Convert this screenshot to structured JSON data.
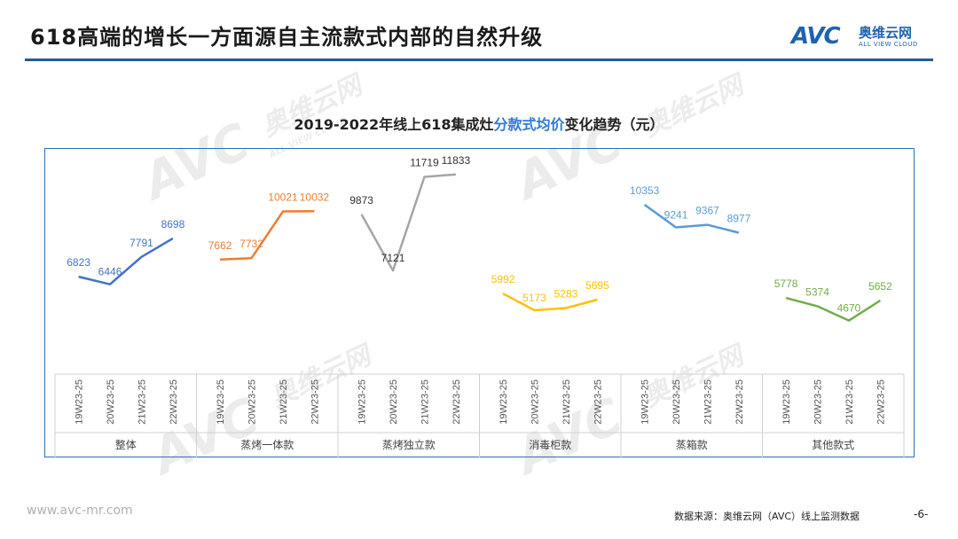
{
  "header": {
    "title": "618高端的增长一方面源自主流款式内部的自然升级"
  },
  "logo": {
    "brand": "AVC",
    "cn": "奥维云网",
    "en": "ALL VIEW CLOUD"
  },
  "watermark": {
    "brand": "AVC",
    "cn": "奥维云网",
    "en": "ALL VIEW CLOUD"
  },
  "chart_data": {
    "type": "line",
    "title_prefix": "2019-2022年线上618集成灶",
    "title_highlight": "分款式均价",
    "title_suffix": "变化趋势（元）",
    "periods": [
      "19W23-25",
      "20W23-25",
      "21W23-25",
      "22W23-25"
    ],
    "ylim": [
      3000,
      13000
    ],
    "groups": [
      {
        "name": "整体",
        "color": "#4472c4",
        "values": [
          6823,
          6446,
          7791,
          8698
        ]
      },
      {
        "name": "蒸烤一体款",
        "color": "#ed7d31",
        "values": [
          7662,
          7732,
          10021,
          10032
        ]
      },
      {
        "name": "蒸烤独立款",
        "color": "#a5a5a5",
        "values": [
          9873,
          7121,
          11719,
          11833
        ]
      },
      {
        "name": "消毒柜款",
        "color": "#ffc000",
        "values": [
          5992,
          5173,
          5283,
          5695
        ]
      },
      {
        "name": "蒸箱款",
        "color": "#5b9bd5",
        "values": [
          10353,
          9241,
          9367,
          8977
        ]
      },
      {
        "name": "其他款式",
        "color": "#70ad47",
        "values": [
          5778,
          5374,
          4670,
          5652
        ]
      }
    ]
  },
  "footer": {
    "url": "www.avc-mr.com",
    "source": "数据来源：奥维云网（AVC）线上监测数据",
    "page": "-6-"
  }
}
